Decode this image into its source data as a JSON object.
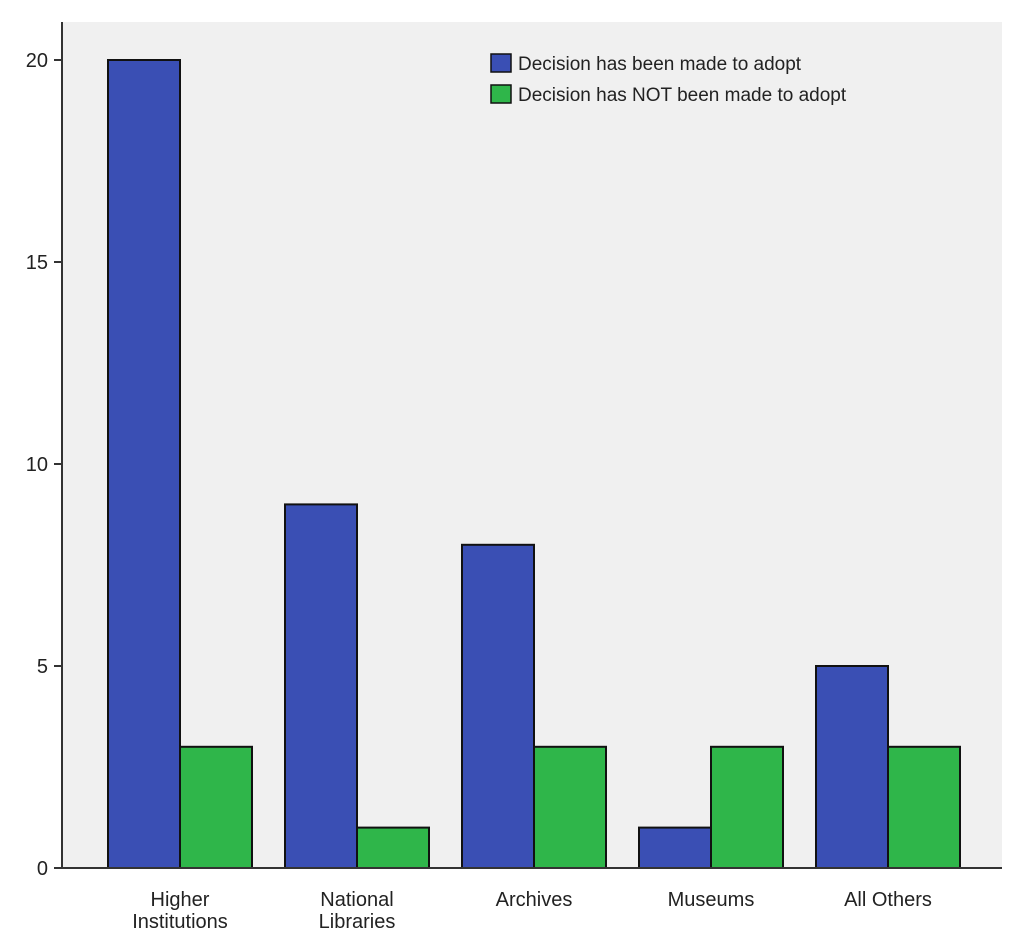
{
  "chart_data": {
    "type": "bar",
    "title": "",
    "xlabel": "",
    "ylabel": "",
    "ylim": [
      0,
      21
    ],
    "yticks": [
      0,
      5,
      10,
      15,
      20
    ],
    "grid": false,
    "legend_position": "top-right",
    "categories": [
      [
        "Higher",
        "Institutions"
      ],
      [
        "National",
        "Libraries"
      ],
      [
        "Archives"
      ],
      [
        "Museums"
      ],
      [
        "All Others"
      ]
    ],
    "series": [
      {
        "name": "Decision has been made to adopt",
        "color": "#3a4fb4",
        "values": [
          20,
          9,
          8,
          1,
          5
        ]
      },
      {
        "name": "Decision has NOT been made to adopt",
        "color": "#2fb64a",
        "values": [
          3,
          1,
          3,
          3,
          3
        ]
      }
    ]
  }
}
